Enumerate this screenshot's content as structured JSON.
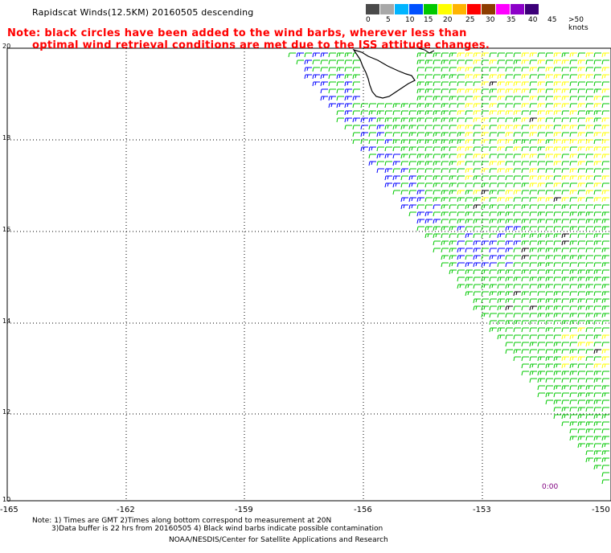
{
  "title": "Rapidscat Winds(12.5KM) 20160505 descending",
  "notice": {
    "line1": "Note: black circles have been added to the wind barbs, wherever less than",
    "line2": "optimal wind retrieval conditions are met due to the ISS attitude changes."
  },
  "legend": {
    "unit_label": ">50 knots",
    "labels": [
      "0",
      "5",
      "10",
      "15",
      "20",
      "25",
      "30",
      "35",
      "40",
      "45"
    ],
    "colors": [
      "#4a4a4a",
      "#a8a8a8",
      "#00b4ff",
      "#0050ff",
      "#00c800",
      "#ffff00",
      "#ffb400",
      "#ff0000",
      "#8c3c00",
      "#ff00ff",
      "#8c00c8",
      "#3c0078"
    ]
  },
  "axes": {
    "lat_labels": [
      "20",
      "18",
      "16",
      "14",
      "12",
      "10"
    ],
    "lon_labels": [
      "-165",
      "-162",
      "-159",
      "-156",
      "-153",
      "-150"
    ]
  },
  "time_label": "0:00",
  "footer": {
    "line1": "Note: 1) Times are GMT 2)Times along bottom correspond to measurement at 20N",
    "line2": "3)Data buffer is 22 hrs from 20160505 4) Black wind barbs indicate possible contamination",
    "line3": "NOAA/NESDIS/Center for Satellite Applications and Research"
  },
  "colors": {
    "barb_green": "#00c800",
    "barb_blue": "#0000ff",
    "barb_yellow": "#ffff00",
    "barb_black": "#000000",
    "note_red": "#ff0000"
  }
}
